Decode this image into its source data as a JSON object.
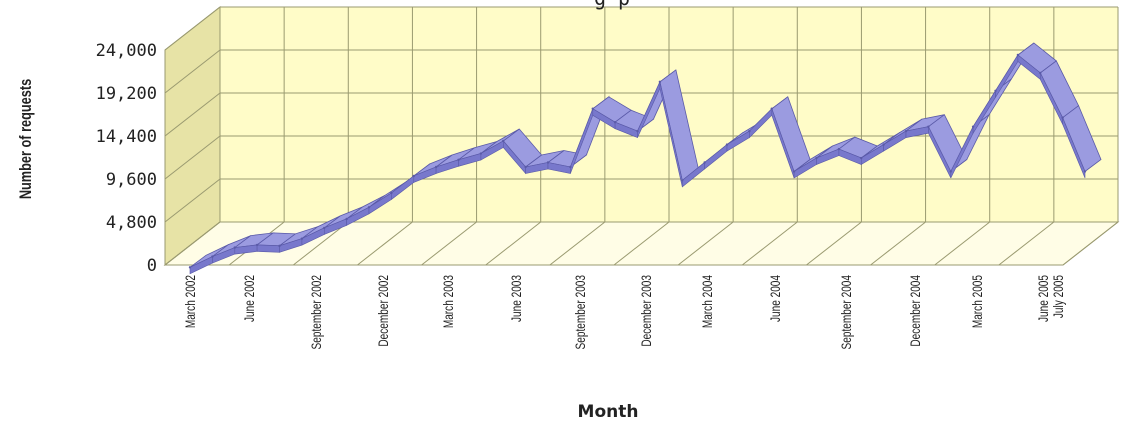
{
  "chart_data": {
    "type": "area",
    "title": "",
    "title_fragment": "g p",
    "xlabel": "Month",
    "ylabel": "Number of requests",
    "ylim": [
      0,
      24000
    ],
    "yticks": [
      "0",
      "4,800",
      "9,600",
      "14,400",
      "19,200",
      "24,000"
    ],
    "x_tick_labels": [
      "March 2002",
      "June 2002",
      "September 2002",
      "December 2002",
      "March 2003",
      "June 2003",
      "September 2003",
      "December 2003",
      "March 2004",
      "June 2004",
      "September 2004",
      "December 2004",
      "March 2005",
      "June 2005",
      "July 2005"
    ],
    "categories": [
      "2002-03",
      "2002-04",
      "2002-05",
      "2002-06",
      "2002-07",
      "2002-08",
      "2002-09",
      "2002-10",
      "2002-11",
      "2002-12",
      "2003-01",
      "2003-02",
      "2003-03",
      "2003-04",
      "2003-05",
      "2003-06",
      "2003-07",
      "2003-08",
      "2003-09",
      "2003-10",
      "2003-11",
      "2003-12",
      "2004-01",
      "2004-02",
      "2004-03",
      "2004-04",
      "2004-05",
      "2004-06",
      "2004-07",
      "2004-08",
      "2004-09",
      "2004-10",
      "2004-11",
      "2004-12",
      "2005-01",
      "2005-02",
      "2005-03",
      "2005-04",
      "2005-05",
      "2005-06",
      "2005-07"
    ],
    "values": [
      300,
      1500,
      2500,
      2800,
      2700,
      3500,
      4700,
      5700,
      7000,
      8600,
      10500,
      11500,
      12300,
      13000,
      14400,
      11500,
      12000,
      11500,
      18000,
      16500,
      15500,
      21000,
      10000,
      12000,
      14000,
      15500,
      18000,
      11000,
      12500,
      13500,
      12500,
      14000,
      15500,
      16000,
      11000,
      16000,
      20000,
      24000,
      22000,
      17000,
      11000
    ],
    "grid": true,
    "legend": "none",
    "colors": {
      "series_top": "#9b9be0",
      "series_front": "#7878cc",
      "series_edge": "#5a5aa8",
      "back_wall": "#fffcc8",
      "side_wall": "#e7e3a6",
      "floor": "#fffde6",
      "grid": "#9a9a70"
    }
  }
}
